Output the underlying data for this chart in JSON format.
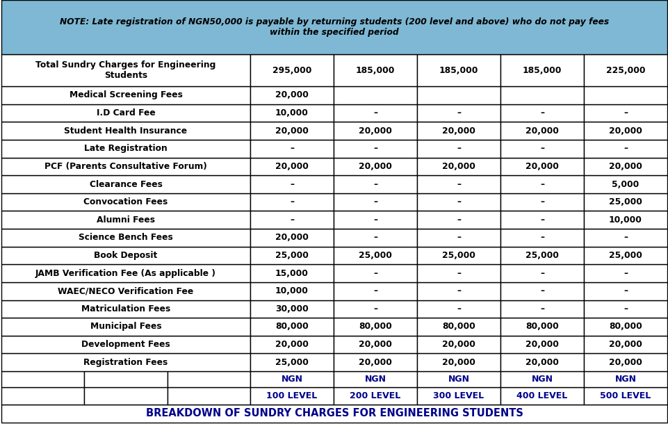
{
  "title": "BREAKDOWN OF SUNDRY CHARGES FOR ENGINEERING STUDENTS",
  "level_headers": [
    "100 LEVEL",
    "200 LEVEL",
    "300 LEVEL",
    "400 LEVEL",
    "500 LEVEL"
  ],
  "ngn_headers": [
    "NGN",
    "NGN",
    "NGN",
    "NGN",
    "NGN"
  ],
  "rows": [
    [
      "Registration Fees",
      "25,000",
      "20,000",
      "20,000",
      "20,000",
      "20,000"
    ],
    [
      "Development Fees",
      "20,000",
      "20,000",
      "20,000",
      "20,000",
      "20,000"
    ],
    [
      "Municipal Fees",
      "80,000",
      "80,000",
      "80,000",
      "80,000",
      "80,000"
    ],
    [
      "Matriculation Fees",
      "30,000",
      "–",
      "–",
      "–",
      "–"
    ],
    [
      "WAEC/NECO Verification Fee",
      "10,000",
      "–",
      "–",
      "–",
      "–"
    ],
    [
      "JAMB Verification Fee (As applicable )",
      "15,000",
      "–",
      "–",
      "–",
      "–"
    ],
    [
      "Book Deposit",
      "25,000",
      "25,000",
      "25,000",
      "25,000",
      "25,000"
    ],
    [
      "Science Bench Fees",
      "20,000",
      "–",
      "–",
      "–",
      "–"
    ],
    [
      "Alumni Fees",
      "–",
      "–",
      "–",
      "–",
      "10,000"
    ],
    [
      "Convocation Fees",
      "–",
      "–",
      "–",
      "–",
      "25,000"
    ],
    [
      "Clearance Fees",
      "–",
      "–",
      "–",
      "–",
      "5,000"
    ],
    [
      "PCF (Parents Consultative Forum)",
      "20,000",
      "20,000",
      "20,000",
      "20,000",
      "20,000"
    ],
    [
      "Late Registration",
      "–",
      "–",
      "–",
      "–",
      "–"
    ],
    [
      "Student Health Insurance",
      "20,000",
      "20,000",
      "20,000",
      "20,000",
      "20,000"
    ],
    [
      "I.D Card Fee",
      "10,000",
      "–",
      "–",
      "–",
      "–"
    ],
    [
      "Medical Screening Fees",
      "20,000",
      "",
      "",
      "",
      ""
    ],
    [
      "Total Sundry Charges for Engineering\nStudents",
      "295,000",
      "185,000",
      "185,000",
      "185,000",
      "225,000"
    ]
  ],
  "note_line1": "NOTE: Late registration of NGN50,000 is payable by returning students (200 level and above) who do not pay fees",
  "note_line2": "within the specified period",
  "bg_white": "#ffffff",
  "note_bg": "#7eb8d4",
  "border_color": "#000000",
  "title_color": "#00008B",
  "header_color": "#00008B",
  "text_color": "#000000",
  "figsize": [
    9.62,
    6.1
  ],
  "dpi": 100
}
